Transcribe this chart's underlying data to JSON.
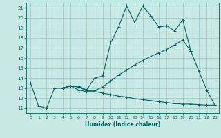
{
  "xlabel": "Humidex (Indice chaleur)",
  "xlim": [
    -0.5,
    23.5
  ],
  "ylim": [
    10.5,
    21.5
  ],
  "yticks": [
    11,
    12,
    13,
    14,
    15,
    16,
    17,
    18,
    19,
    20,
    21
  ],
  "xticks": [
    0,
    1,
    2,
    3,
    4,
    5,
    6,
    7,
    8,
    9,
    10,
    11,
    12,
    13,
    14,
    15,
    16,
    17,
    18,
    19,
    20,
    21,
    22,
    23
  ],
  "bg_color": "#c8e8e4",
  "grid_color": "#a0cccc",
  "line_color": "#006060",
  "line1_x": [
    0,
    1,
    2,
    3,
    4,
    5,
    6,
    7,
    8,
    9,
    10,
    11,
    12,
    13,
    14,
    15,
    16,
    17,
    18,
    19,
    20,
    21,
    22,
    23
  ],
  "line1_y": [
    13.5,
    11.2,
    11.0,
    13.0,
    13.0,
    13.2,
    12.8,
    12.65,
    12.65,
    12.5,
    12.35,
    12.2,
    12.1,
    11.95,
    11.85,
    11.75,
    11.65,
    11.55,
    11.45,
    11.4,
    11.4,
    11.35,
    11.3,
    11.3
  ],
  "line2_x": [
    3,
    4,
    5,
    6,
    7,
    8,
    9,
    10,
    11,
    12,
    13,
    14,
    15,
    16,
    17,
    18,
    19,
    20,
    21,
    22,
    23
  ],
  "line2_y": [
    13.0,
    13.0,
    13.2,
    13.2,
    12.8,
    14.0,
    14.2,
    17.5,
    19.1,
    21.2,
    19.5,
    21.2,
    20.2,
    19.1,
    19.2,
    18.7,
    19.8,
    16.7,
    14.7,
    12.8,
    11.3
  ],
  "line3_x": [
    3,
    4,
    5,
    6,
    7,
    8,
    9,
    10,
    11,
    12,
    13,
    14,
    15,
    16,
    17,
    18,
    19,
    20
  ],
  "line3_y": [
    13.0,
    13.0,
    13.2,
    13.1,
    12.75,
    12.75,
    13.1,
    13.7,
    14.3,
    14.8,
    15.3,
    15.75,
    16.15,
    16.5,
    16.85,
    17.3,
    17.8,
    16.7
  ]
}
